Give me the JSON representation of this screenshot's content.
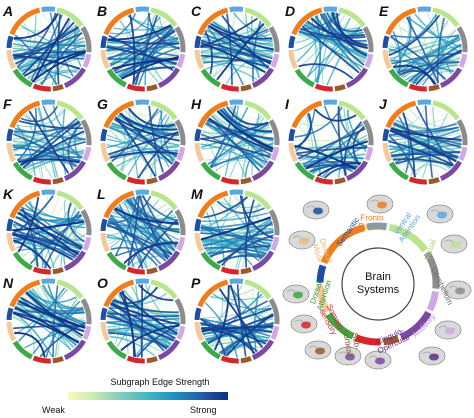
{
  "panels": [
    {
      "label": "A",
      "seed": 11
    },
    {
      "label": "B",
      "seed": 23
    },
    {
      "label": "C",
      "seed": 37
    },
    {
      "label": "D",
      "seed": 41
    },
    {
      "label": "E",
      "seed": 53
    },
    {
      "label": "F",
      "seed": 67
    },
    {
      "label": "G",
      "seed": 71
    },
    {
      "label": "H",
      "seed": 83
    },
    {
      "label": "I",
      "seed": 97
    },
    {
      "label": "J",
      "seed": 101
    },
    {
      "label": "K",
      "seed": 113
    },
    {
      "label": "L",
      "seed": 127
    },
    {
      "label": "M",
      "seed": 131
    },
    {
      "label": "N",
      "seed": 149
    },
    {
      "label": "O",
      "seed": 157
    },
    {
      "label": "P",
      "seed": 163
    }
  ],
  "systems": [
    {
      "name": "Fronto Parietal",
      "color": "#f07d1a",
      "span": 58
    },
    {
      "name": "Ventral Attention",
      "color": "#5aa8e0",
      "span": 22
    },
    {
      "name": "Visual",
      "color": "#b9e58d",
      "span": 46
    },
    {
      "name": "Cerebellum",
      "color": "#8c8c8c",
      "span": 40
    },
    {
      "name": "Auditory",
      "color": "#d3a6e6",
      "span": 22
    },
    {
      "name": "Cingulo-Opercular",
      "color": "#7b4aa0",
      "span": 40
    },
    {
      "name": "Subcortical",
      "color": "#9a5a2e",
      "span": 18
    },
    {
      "name": "Somato-sensory",
      "color": "#d7262a",
      "span": 28
    },
    {
      "name": "Dorsal Attention",
      "color": "#3caa46",
      "span": 36
    },
    {
      "name": "Default Mode",
      "color": "#f5c99a",
      "span": 30
    },
    {
      "name": "Semantic",
      "color": "#1f4ea3",
      "span": 20
    }
  ],
  "legend": {
    "center_line1": "Brain",
    "center_line2": "Systems",
    "labels": [
      {
        "key": "fp",
        "line1": "Fronto",
        "line2": "Parietal",
        "color": "#f07d1a"
      },
      {
        "key": "va",
        "line1": "Ventral",
        "line2": "Attention",
        "color": "#5aa8e0"
      },
      {
        "key": "vis",
        "line1": "Visual",
        "line2": "",
        "color": "#a5d67a"
      },
      {
        "key": "cer",
        "line1": "Cerebellum",
        "line2": "",
        "color": "#6e6e6e"
      },
      {
        "key": "aud",
        "line1": "Auditory",
        "line2": "",
        "color": "#c28ad9"
      },
      {
        "key": "co",
        "line1": "Cingulo-",
        "line2": "Opercular",
        "color": "#5e2f86"
      },
      {
        "key": "sub",
        "line1": "Sub-",
        "line2": "cortical",
        "color": "#8a4d25"
      },
      {
        "key": "ss",
        "line1": "Somato-",
        "line2": "sensory",
        "color": "#d7262a"
      },
      {
        "key": "da",
        "line1": "Dorsal",
        "line2": "Attention",
        "color": "#2f9a3a"
      },
      {
        "key": "dm",
        "line1": "Default",
        "line2": "Mode",
        "color": "#f0b87a"
      },
      {
        "key": "sem",
        "line1": "Semantic",
        "line2": "",
        "color": "#1f4ea3"
      }
    ]
  },
  "colorbar": {
    "title": "Subgraph Edge Strength",
    "weak_label": "Weak",
    "strong_label": "Strong",
    "colors": [
      "#f7fcb9",
      "#c7e9b4",
      "#7fcdbb",
      "#41b6c4",
      "#1d91c0",
      "#225ea8",
      "#0c2c84"
    ]
  }
}
